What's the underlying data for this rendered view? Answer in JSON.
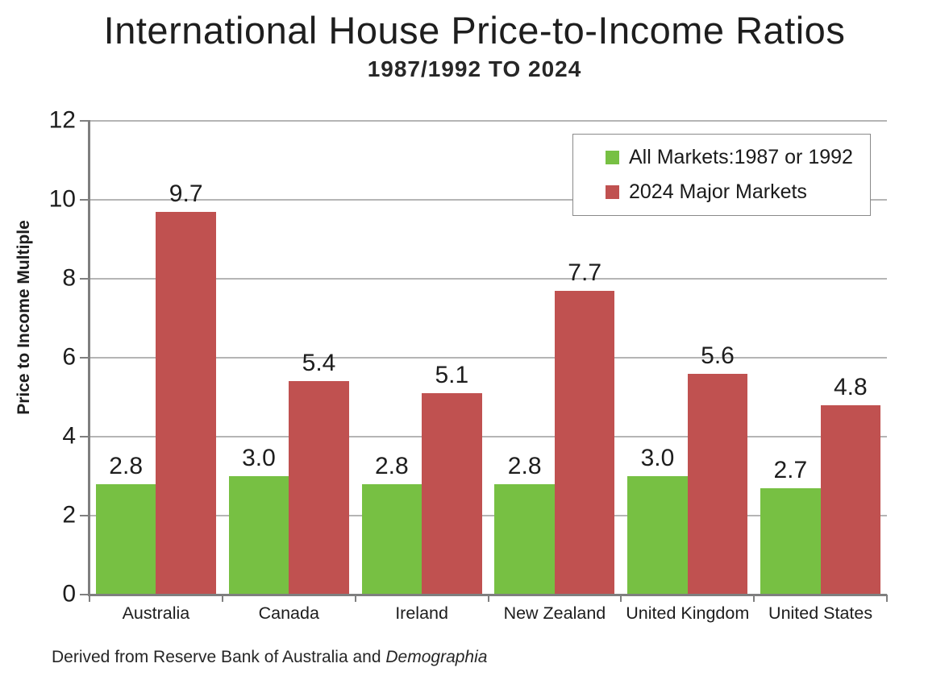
{
  "header": {
    "title": "International House Price-to-Income Ratios",
    "subtitle": "1987/1992 TO 2024"
  },
  "chart_data": {
    "type": "bar",
    "categories": [
      "Australia",
      "Canada",
      "Ireland",
      "New Zealand",
      "United Kingdom",
      "United States"
    ],
    "series": [
      {
        "name": "All Markets:1987 or 1992",
        "color": "#77C043",
        "values": [
          2.8,
          3.0,
          2.8,
          2.8,
          3.0,
          2.7
        ]
      },
      {
        "name": "2024 Major Markets",
        "color": "#C05150",
        "values": [
          9.7,
          5.4,
          5.1,
          7.7,
          5.6,
          4.8
        ]
      }
    ],
    "title": "International House Price-to-Income Ratios",
    "subtitle": "1987/1992 TO 2024",
    "xlabel": "",
    "ylabel": "Price to Income Multiple",
    "ylim": [
      0,
      12
    ],
    "yticks": [
      0,
      2,
      4,
      6,
      8,
      10,
      12
    ],
    "grid": "horizontal",
    "legend_position": "top-right",
    "bar_labels": true,
    "label_format": "0.0",
    "colors": {
      "grid": "#b5b5b5",
      "axis": "#7f7f7f",
      "text": "#1d1d1d"
    }
  },
  "footer": {
    "prefix": "Derived from Reserve Bank of Australia and ",
    "source_italic": "Demographia"
  }
}
